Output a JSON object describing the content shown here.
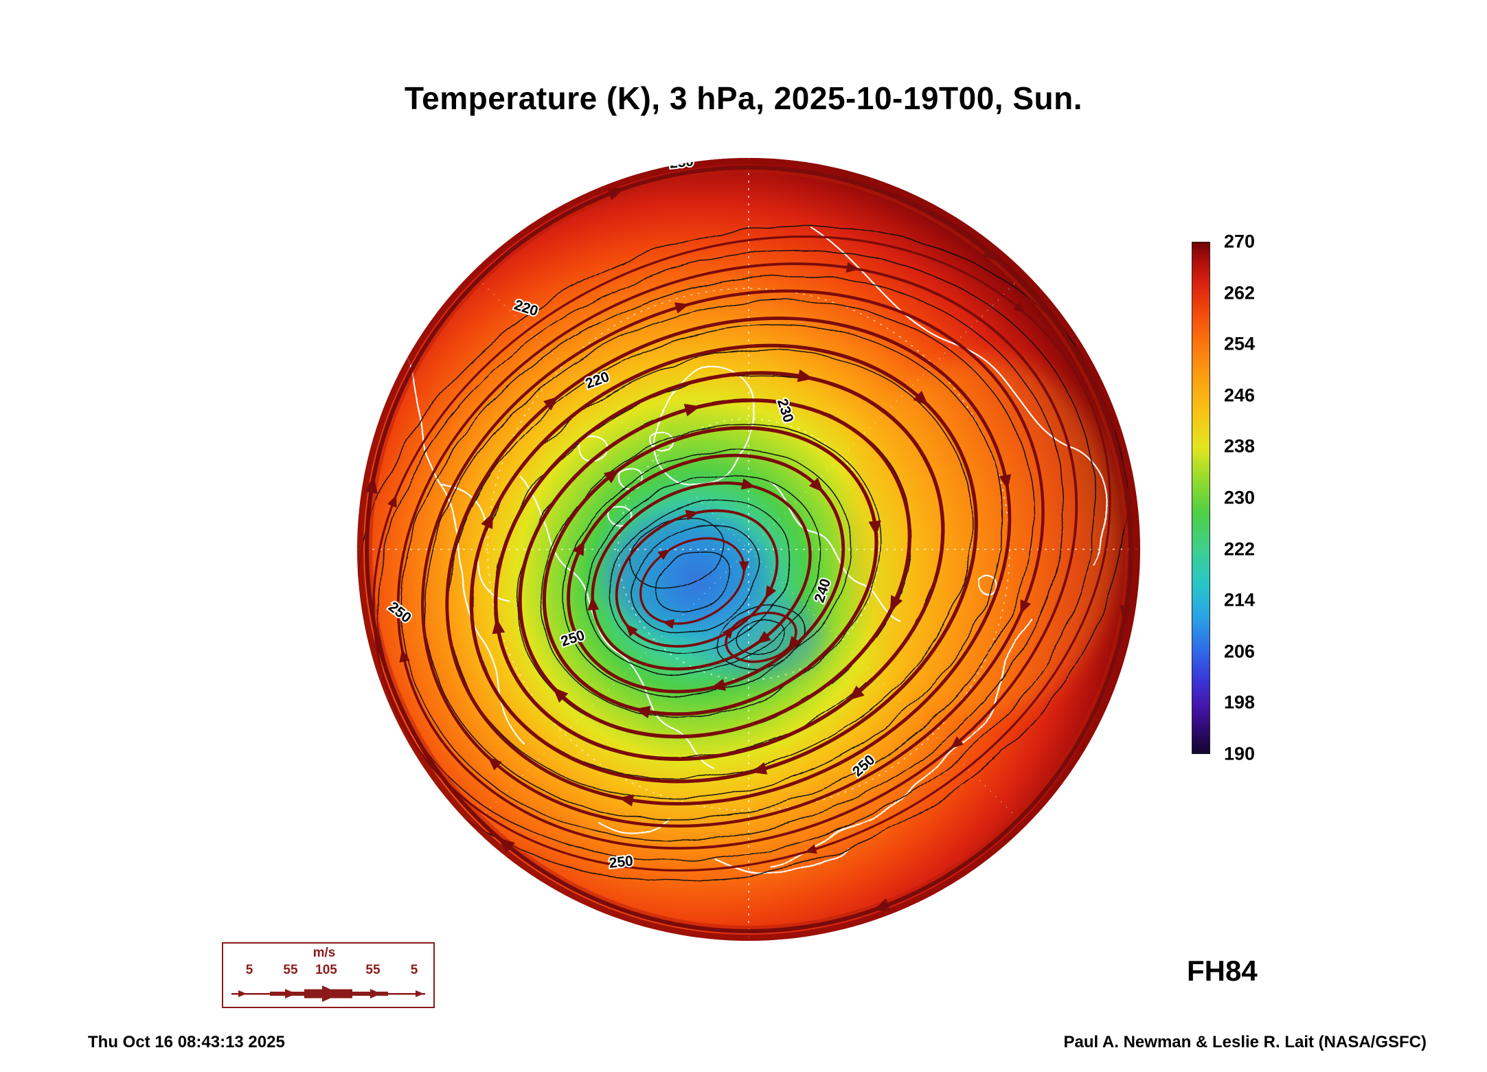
{
  "title": "Temperature (K), 3 hPa, 2025-10-19T00, Sun.",
  "footer": {
    "timestamp": "Thu Oct 16 08:43:13 2025",
    "credit": "Paul A. Newman & Leslie R. Lait (NASA/GSFC)",
    "forecast_label": "FH84"
  },
  "wind_legend": {
    "unit": "m/s",
    "ticks": [
      "5",
      "55",
      "105",
      "55",
      "5"
    ]
  },
  "colorbar": {
    "ticks": [
      "270",
      "262",
      "254",
      "246",
      "238",
      "230",
      "222",
      "214",
      "206",
      "198",
      "190"
    ],
    "stops_bottom_to_top": [
      {
        "t": 0.0,
        "c": "#14052e"
      },
      {
        "t": 0.04,
        "c": "#2a0a66"
      },
      {
        "t": 0.09,
        "c": "#4614a8"
      },
      {
        "t": 0.14,
        "c": "#3b33d6"
      },
      {
        "t": 0.2,
        "c": "#2f6ae8"
      },
      {
        "t": 0.27,
        "c": "#2aa4e4"
      },
      {
        "t": 0.33,
        "c": "#27c6c9"
      },
      {
        "t": 0.4,
        "c": "#3ecf8e"
      },
      {
        "t": 0.47,
        "c": "#4ecf45"
      },
      {
        "t": 0.54,
        "c": "#9adc2c"
      },
      {
        "t": 0.6,
        "c": "#e3e51e"
      },
      {
        "t": 0.67,
        "c": "#f8c215"
      },
      {
        "t": 0.74,
        "c": "#fc9d12"
      },
      {
        "t": 0.81,
        "c": "#fa700e"
      },
      {
        "t": 0.87,
        "c": "#f0440c"
      },
      {
        "t": 0.92,
        "c": "#d92210"
      },
      {
        "t": 0.97,
        "c": "#a50d0a"
      },
      {
        "t": 1.0,
        "c": "#6f0404"
      }
    ]
  },
  "palette": {
    "map_gradient": [
      {
        "t": 0.0,
        "c": "#3f7fe0"
      },
      {
        "t": 0.05,
        "c": "#2f9be4"
      },
      {
        "t": 0.11,
        "c": "#27c0cf"
      },
      {
        "t": 0.18,
        "c": "#3ecf96"
      },
      {
        "t": 0.25,
        "c": "#4ecf45"
      },
      {
        "t": 0.33,
        "c": "#9adc2c"
      },
      {
        "t": 0.41,
        "c": "#e3e51e"
      },
      {
        "t": 0.49,
        "c": "#f8c215"
      },
      {
        "t": 0.57,
        "c": "#fc9d12"
      },
      {
        "t": 0.67,
        "c": "#fa700e"
      },
      {
        "t": 0.77,
        "c": "#f0440c"
      },
      {
        "t": 0.86,
        "c": "#d92210"
      },
      {
        "t": 0.94,
        "c": "#ab0f0b"
      },
      {
        "t": 1.0,
        "c": "#7d0707"
      }
    ],
    "stream_color": "#7a0b0b",
    "contour_color": "#101010",
    "coast_color": "#ffffff",
    "legend_color": "#8b1a1a"
  },
  "map": {
    "contour_label_values": [
      "250",
      "240",
      "230",
      "220",
      "250",
      "250",
      "240",
      "250",
      "250",
      "230",
      "240",
      "250",
      "250",
      "220"
    ]
  },
  "chart_data": {
    "type": "heatmap",
    "title": "Temperature (K), 3 hPa, 2025-10-19T00, Sun.",
    "variable": "Temperature",
    "units": "K",
    "pressure_level_hPa": 3,
    "valid_time": "2025-10-19T00",
    "weekday": "Sun.",
    "forecast_hour_label": "FH84",
    "projection": "Northern Hemisphere polar stereographic",
    "colorbar_range": [
      190,
      270
    ],
    "colorbar_ticks": [
      270,
      262,
      254,
      246,
      238,
      230,
      222,
      214,
      206,
      198,
      190
    ],
    "temperature_contour_labels_K": [
      220,
      230,
      240,
      250
    ],
    "overlays": [
      "black temperature contours",
      "dark-red wind streamlines with arrowheads",
      "white coastlines",
      "white dashed graticule"
    ],
    "cold_pole_note": "Coldest air (~205-215 K, blue/cyan) centered near the pole, offset toward the Canadian Arctic",
    "warm_edge_note": "Warmest air (~255-270 K, red/dark red) around the outer edge of the map",
    "wind_speed_legend_ms": [
      5,
      55,
      105,
      55,
      5
    ],
    "generated": "Thu Oct 16 08:43:13 2025",
    "credit": "Paul A. Newman & Leslie R. Lait (NASA/GSFC)"
  }
}
